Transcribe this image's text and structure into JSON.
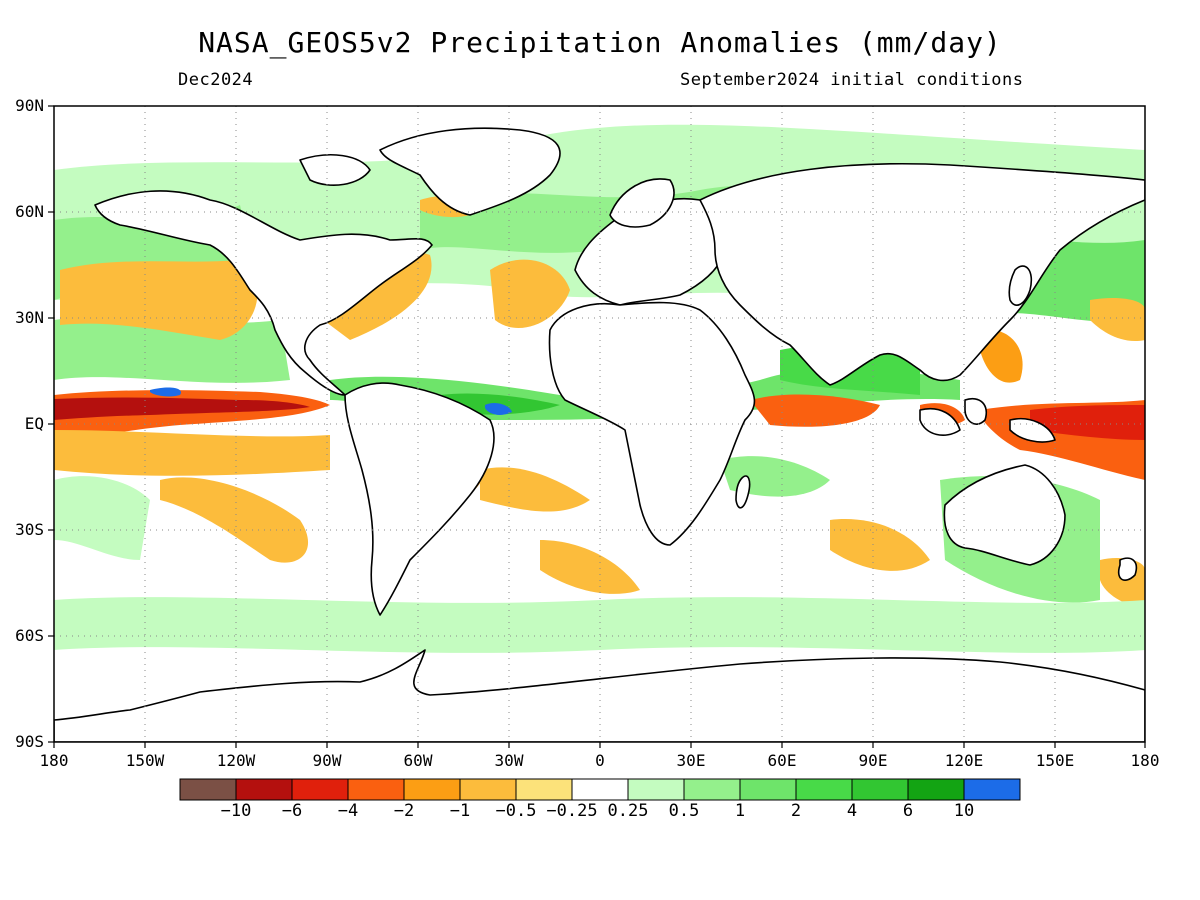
{
  "title": "NASA_GEOS5v2 Precipitation Anomalies (mm/day)",
  "subtitle_left": "Dec2024",
  "subtitle_right": "September2024 initial conditions",
  "lat_labels": [
    "90N",
    "60N",
    "30N",
    "EQ",
    "30S",
    "60S",
    "90S"
  ],
  "lon_labels": [
    "180",
    "150W",
    "120W",
    "90W",
    "60W",
    "30W",
    "0",
    "30E",
    "60E",
    "90E",
    "120E",
    "150E",
    "180"
  ],
  "colorbar": {
    "labels": [
      "−10",
      "−6",
      "−4",
      "−2",
      "−1",
      "−0.5",
      "−0.25",
      "0.25",
      "0.5",
      "1",
      "2",
      "4",
      "6",
      "10"
    ],
    "colors": [
      "#7b5045",
      "#b4100e",
      "#e0200c",
      "#fa6010",
      "#fc9e14",
      "#fcbc3c",
      "#fce27a",
      "#ffffff",
      "#c4fcc0",
      "#94f08c",
      "#6ee46a",
      "#48da48",
      "#32c632",
      "#13a413",
      "#1c6ce8"
    ]
  },
  "map": {
    "lon_range": [
      -180,
      180
    ],
    "lat_range": [
      -90,
      90
    ],
    "grid": "dotted",
    "projection": "equirectangular"
  }
}
